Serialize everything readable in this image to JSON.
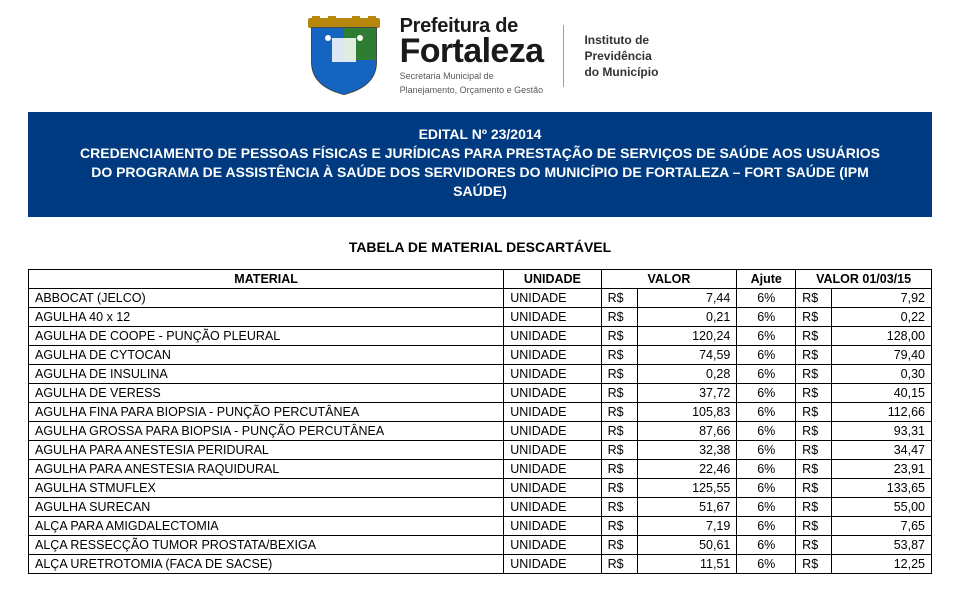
{
  "header": {
    "brand_line1": "Prefeitura de",
    "brand_line2": "Fortaleza",
    "brand_sub1": "Secretaria Municipal de",
    "brand_sub2": "Planejamento, Orçamento e Gestão",
    "ipm_line1": "Instituto de",
    "ipm_line2": "Previdência",
    "ipm_line3": "do Município"
  },
  "banner": {
    "title": "EDITAL Nº 23/2014",
    "body": "CREDENCIAMENTO DE PESSOAS FÍSICAS E JURÍDICAS PARA PRESTAÇÃO DE SERVIÇOS DE SAÚDE AOS USUÁRIOS DO PROGRAMA DE ASSISTÊNCIA À SAÚDE DOS SERVIDORES DO MUNICÍPIO DE FORTALEZA – FORT SAÚDE (IPM SAÚDE)"
  },
  "table": {
    "title": "TABELA DE MATERIAL DESCARTÁVEL",
    "headers": {
      "material": "MATERIAL",
      "unit": "UNIDADE",
      "valor": "VALOR",
      "ajute": "Ajute",
      "valor_015": "VALOR 01/03/15"
    },
    "currency": "R$",
    "adjust_pct": "6%",
    "colors": {
      "banner_bg": "#003b82",
      "banner_text": "#ffffff",
      "border": "#000000",
      "page_bg": "#ffffff",
      "text": "#000000"
    },
    "rows": [
      {
        "material": "ABBOCAT (JELCO)",
        "unit": "UNIDADE",
        "valor": "7,44",
        "valor2": "7,92"
      },
      {
        "material": "AGULHA 40 x 12",
        "unit": "UNIDADE",
        "valor": "0,21",
        "valor2": "0,22"
      },
      {
        "material": "AGULHA DE COOPE - PUNÇÃO PLEURAL",
        "unit": "UNIDADE",
        "valor": "120,24",
        "valor2": "128,00"
      },
      {
        "material": "AGULHA DE CYTOCAN",
        "unit": "UNIDADE",
        "valor": "74,59",
        "valor2": "79,40"
      },
      {
        "material": "AGULHA DE INSULINA",
        "unit": "UNIDADE",
        "valor": "0,28",
        "valor2": "0,30"
      },
      {
        "material": "AGULHA DE VERESS",
        "unit": "UNIDADE",
        "valor": "37,72",
        "valor2": "40,15"
      },
      {
        "material": "AGULHA FINA PARA BIOPSIA - PUNÇÃO PERCUTÂNEA",
        "unit": "UNIDADE",
        "valor": "105,83",
        "valor2": "112,66"
      },
      {
        "material": "AGULHA GROSSA PARA BIOPSIA - PUNÇÃO PERCUTÂNEA",
        "unit": "UNIDADE",
        "valor": "87,66",
        "valor2": "93,31"
      },
      {
        "material": "AGULHA PARA ANESTESIA PERIDURAL",
        "unit": "UNIDADE",
        "valor": "32,38",
        "valor2": "34,47"
      },
      {
        "material": "AGULHA PARA ANESTESIA RAQUIDURAL",
        "unit": "UNIDADE",
        "valor": "22,46",
        "valor2": "23,91"
      },
      {
        "material": "AGULHA STMUFLEX",
        "unit": "UNIDADE",
        "valor": "125,55",
        "valor2": "133,65"
      },
      {
        "material": "AGULHA SURECAN",
        "unit": "UNIDADE",
        "valor": "51,67",
        "valor2": "55,00"
      },
      {
        "material": "ALÇA PARA AMIGDALECTOMIA",
        "unit": "UNIDADE",
        "valor": "7,19",
        "valor2": "7,65"
      },
      {
        "material": "ALÇA RESSECÇÃO TUMOR PROSTATA/BEXIGA",
        "unit": "UNIDADE",
        "valor": "50,61",
        "valor2": "53,87"
      },
      {
        "material": "ALÇA URETROTOMIA (FACA DE SACSE)",
        "unit": "UNIDADE",
        "valor": "11,51",
        "valor2": "12,25"
      }
    ]
  }
}
